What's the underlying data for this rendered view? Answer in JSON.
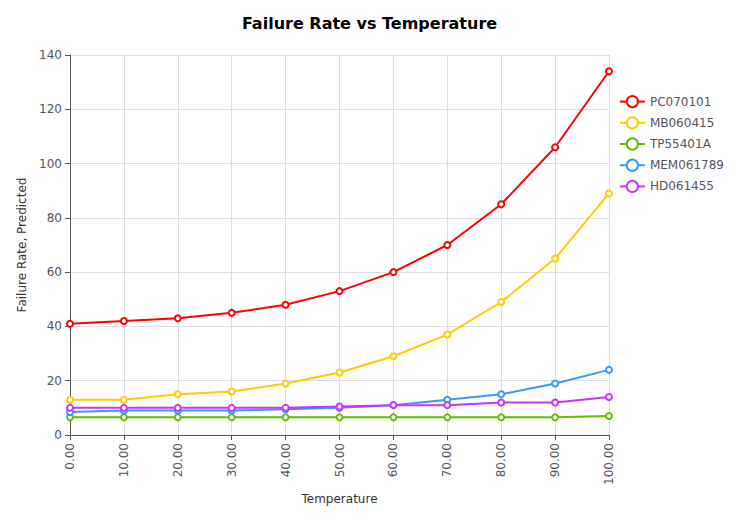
{
  "chart_data": {
    "type": "line",
    "title": "Failure Rate vs Temperature",
    "xlabel": "Temperature",
    "ylabel": "Failure Rate, Predicted",
    "x": [
      0,
      10,
      20,
      30,
      40,
      50,
      60,
      70,
      80,
      90,
      100
    ],
    "series": [
      {
        "name": "PC070101",
        "color": "#ff0000",
        "values": [
          41,
          42,
          43,
          45,
          48,
          53,
          60,
          70,
          85,
          106,
          134
        ]
      },
      {
        "name": "MB060415",
        "color": "#ffcc00",
        "values": [
          13,
          13,
          15,
          16,
          19,
          23,
          29,
          37,
          49,
          65,
          89
        ]
      },
      {
        "name": "TP55401A",
        "color": "#66bb00",
        "values": [
          6.5,
          6.5,
          6.5,
          6.5,
          6.5,
          6.5,
          6.5,
          6.5,
          6.5,
          6.5,
          7.0
        ]
      },
      {
        "name": "MEM061789",
        "color": "#3399ff",
        "values": [
          8.5,
          9,
          9,
          9,
          9.5,
          10,
          11,
          13,
          15,
          19,
          24
        ]
      },
      {
        "name": "HD061455",
        "color": "#cc33ff",
        "values": [
          10,
          10,
          10,
          10,
          10,
          10.5,
          11,
          11,
          12,
          12,
          14
        ]
      }
    ],
    "xlim": [
      0,
      100
    ],
    "ylim": [
      0,
      140
    ],
    "xticks": [
      {
        "value": 0,
        "label": "0.00"
      },
      {
        "value": 10,
        "label": "10.00"
      },
      {
        "value": 20,
        "label": "20.00"
      },
      {
        "value": 30,
        "label": "30.00"
      },
      {
        "value": 40,
        "label": "40.00"
      },
      {
        "value": 50,
        "label": "50.00"
      },
      {
        "value": 60,
        "label": "60.00"
      },
      {
        "value": 70,
        "label": "70.00"
      },
      {
        "value": 80,
        "label": "80.00"
      },
      {
        "value": 90,
        "label": "90.00"
      },
      {
        "value": 100,
        "label": "100.00"
      }
    ],
    "yticks": [
      0,
      20,
      40,
      60,
      80,
      100,
      120,
      140
    ],
    "grid": true,
    "legend": "right",
    "marker": "circle"
  }
}
